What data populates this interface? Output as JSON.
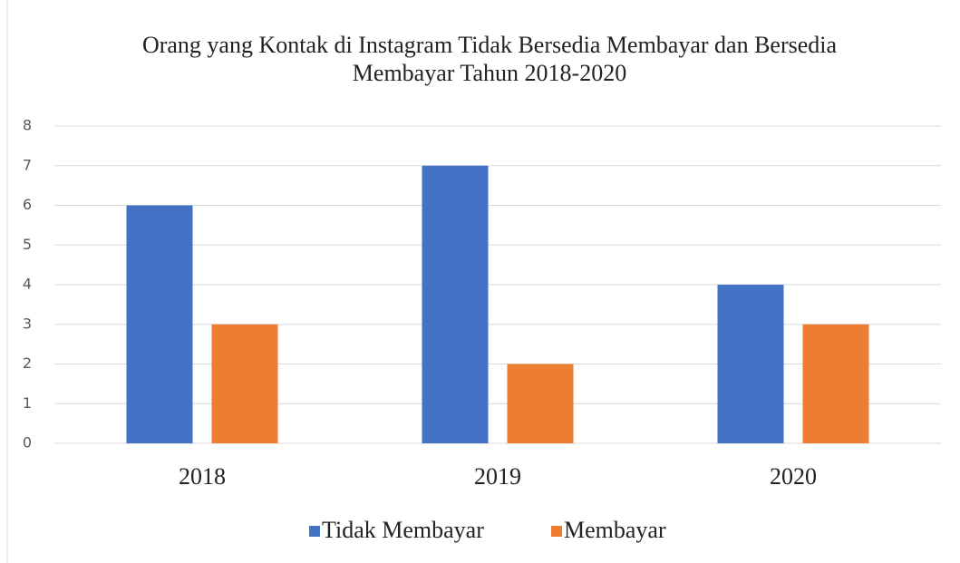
{
  "chart_data": {
    "type": "bar",
    "title": "Orang yang Kontak di Instagram Tidak Bersedia Membayar dan Bersedia Membayar Tahun 2018-2020",
    "categories": [
      "2018",
      "2019",
      "2020"
    ],
    "series": [
      {
        "name": "Tidak Membayar",
        "color": "#4472c4",
        "values": [
          6,
          7,
          4
        ]
      },
      {
        "name": "Membayar",
        "color": "#ed7d31",
        "values": [
          3,
          2,
          3
        ]
      }
    ],
    "ylim": [
      0,
      8
    ],
    "yticks": [
      0,
      1,
      2,
      3,
      4,
      5,
      6,
      7,
      8
    ],
    "grid": true,
    "legend": "bottom"
  }
}
